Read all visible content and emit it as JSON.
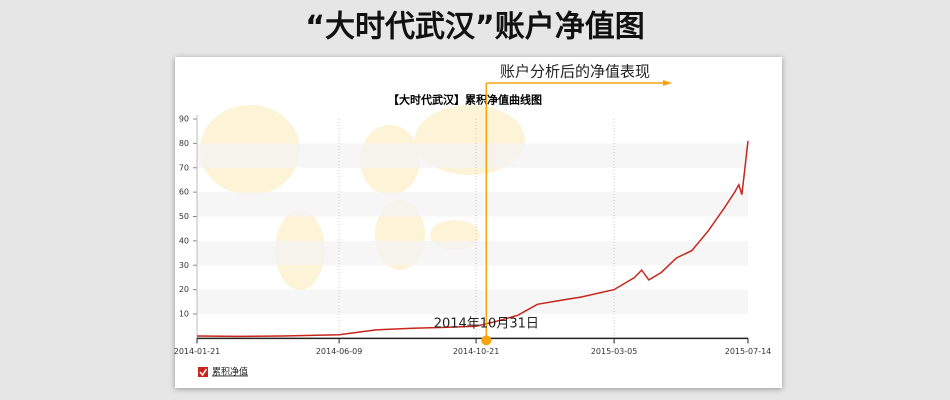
{
  "header": {
    "title": "“大时代武汉”账户净值图"
  },
  "chart_data": {
    "type": "line",
    "title": "【大时代武汉】累积净值曲线图",
    "x": [
      "2014-01-21",
      "2014-03-01",
      "2014-04-15",
      "2014-06-09",
      "2014-07-15",
      "2014-08-20",
      "2014-09-20",
      "2014-10-21",
      "2014-11-10",
      "2014-12-01",
      "2014-12-20",
      "2015-01-10",
      "2015-02-01",
      "2015-03-05",
      "2015-03-25",
      "2015-04-01",
      "2015-04-08",
      "2015-04-20",
      "2015-05-05",
      "2015-05-20",
      "2015-06-05",
      "2015-06-20",
      "2015-07-01",
      "2015-07-05",
      "2015-07-08",
      "2015-07-14"
    ],
    "series": [
      {
        "name": "累积净值",
        "color": "#c8251b",
        "values": [
          1,
          0.8,
          1,
          1.5,
          3.5,
          4.2,
          4.5,
          5,
          7,
          9.5,
          14,
          15.5,
          17,
          20,
          25,
          28,
          24,
          27,
          33,
          36,
          44,
          53,
          60,
          63,
          59,
          81
        ]
      }
    ],
    "xlim": [
      "2014-01-21",
      "2015-07-14"
    ],
    "xticks": [
      "2014-01-21",
      "2014-06-09",
      "2014-10-21",
      "2015-03-05",
      "2015-07-14"
    ],
    "ylim": [
      0,
      90
    ],
    "yticks": [
      10,
      20,
      30,
      40,
      50,
      60,
      70,
      80,
      90
    ],
    "grid": true,
    "marker": {
      "x": "2014-10-31",
      "label": "2014年10月31日",
      "note": "账户分析后的净值表现",
      "color": "#f5a30f"
    }
  }
}
